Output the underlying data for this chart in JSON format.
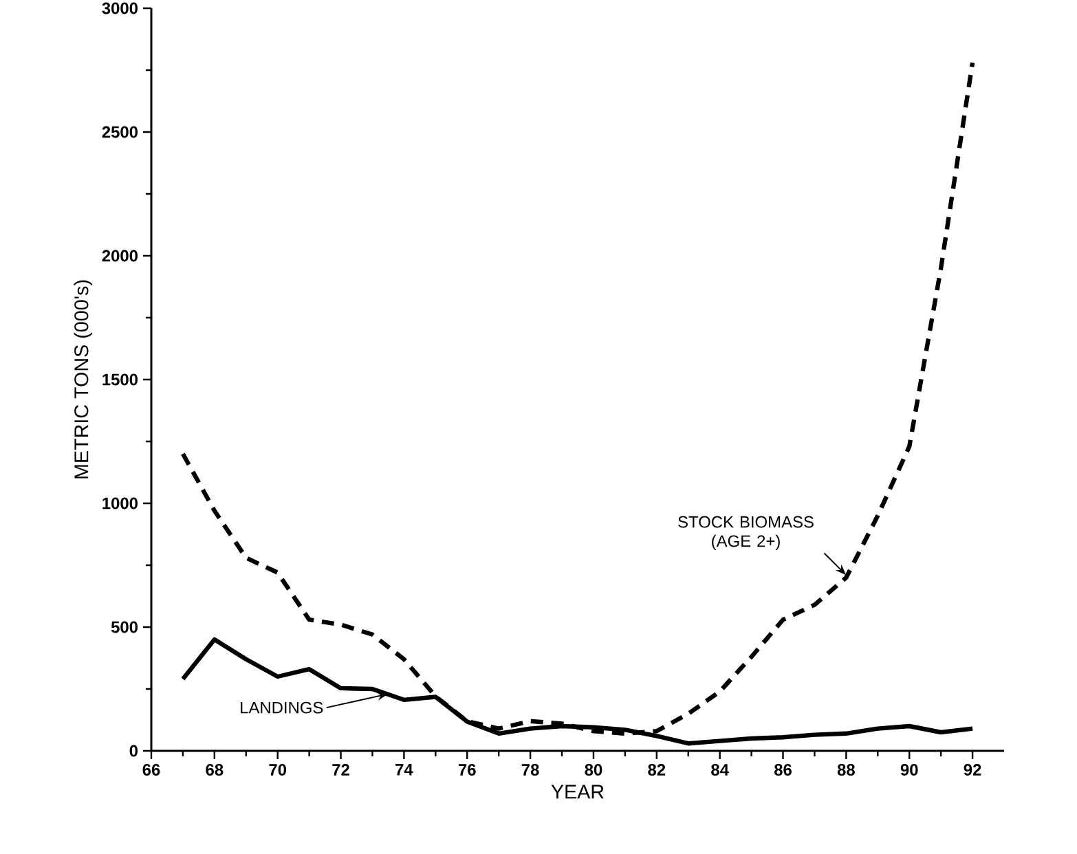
{
  "chart_data": {
    "type": "line",
    "xlabel": "YEAR",
    "ylabel": "METRIC TONS (000's)",
    "x": [
      67,
      68,
      69,
      70,
      71,
      72,
      73,
      74,
      75,
      76,
      77,
      78,
      79,
      80,
      81,
      82,
      83,
      84,
      85,
      86,
      87,
      88,
      89,
      90,
      91,
      92
    ],
    "series": [
      {
        "color": "#000000",
        "line_style": "solid",
        "values": [
          290,
          450,
          370,
          300,
          330,
          253,
          250,
          206,
          218,
          118,
          70,
          90,
          100,
          95,
          85,
          60,
          30,
          40,
          50,
          55,
          65,
          70,
          90,
          100,
          75,
          90
        ]
      },
      {
        "color": "#000000",
        "line_style": "dashed",
        "values": [
          1200,
          970,
          780,
          720,
          530,
          510,
          470,
          370,
          220,
          120,
          90,
          120,
          110,
          80,
          70,
          80,
          150,
          240,
          380,
          530,
          590,
          700,
          950,
          1230,
          1950,
          2780
        ]
      }
    ],
    "xlim": [
      66,
      93
    ],
    "xticks": [
      66,
      68,
      70,
      72,
      74,
      76,
      78,
      80,
      82,
      84,
      86,
      88,
      90,
      92
    ],
    "ylim": [
      0,
      3000
    ],
    "yticks": [
      0,
      500,
      1000,
      1500,
      2000,
      2500,
      3000
    ],
    "annotations": [
      {
        "text": "LANDINGS",
        "x": 73.5,
        "y": 230
      },
      {
        "text": "STOCK BIOMASS (AGE 2+)",
        "x": 88,
        "y": 710
      }
    ],
    "grid": false
  }
}
